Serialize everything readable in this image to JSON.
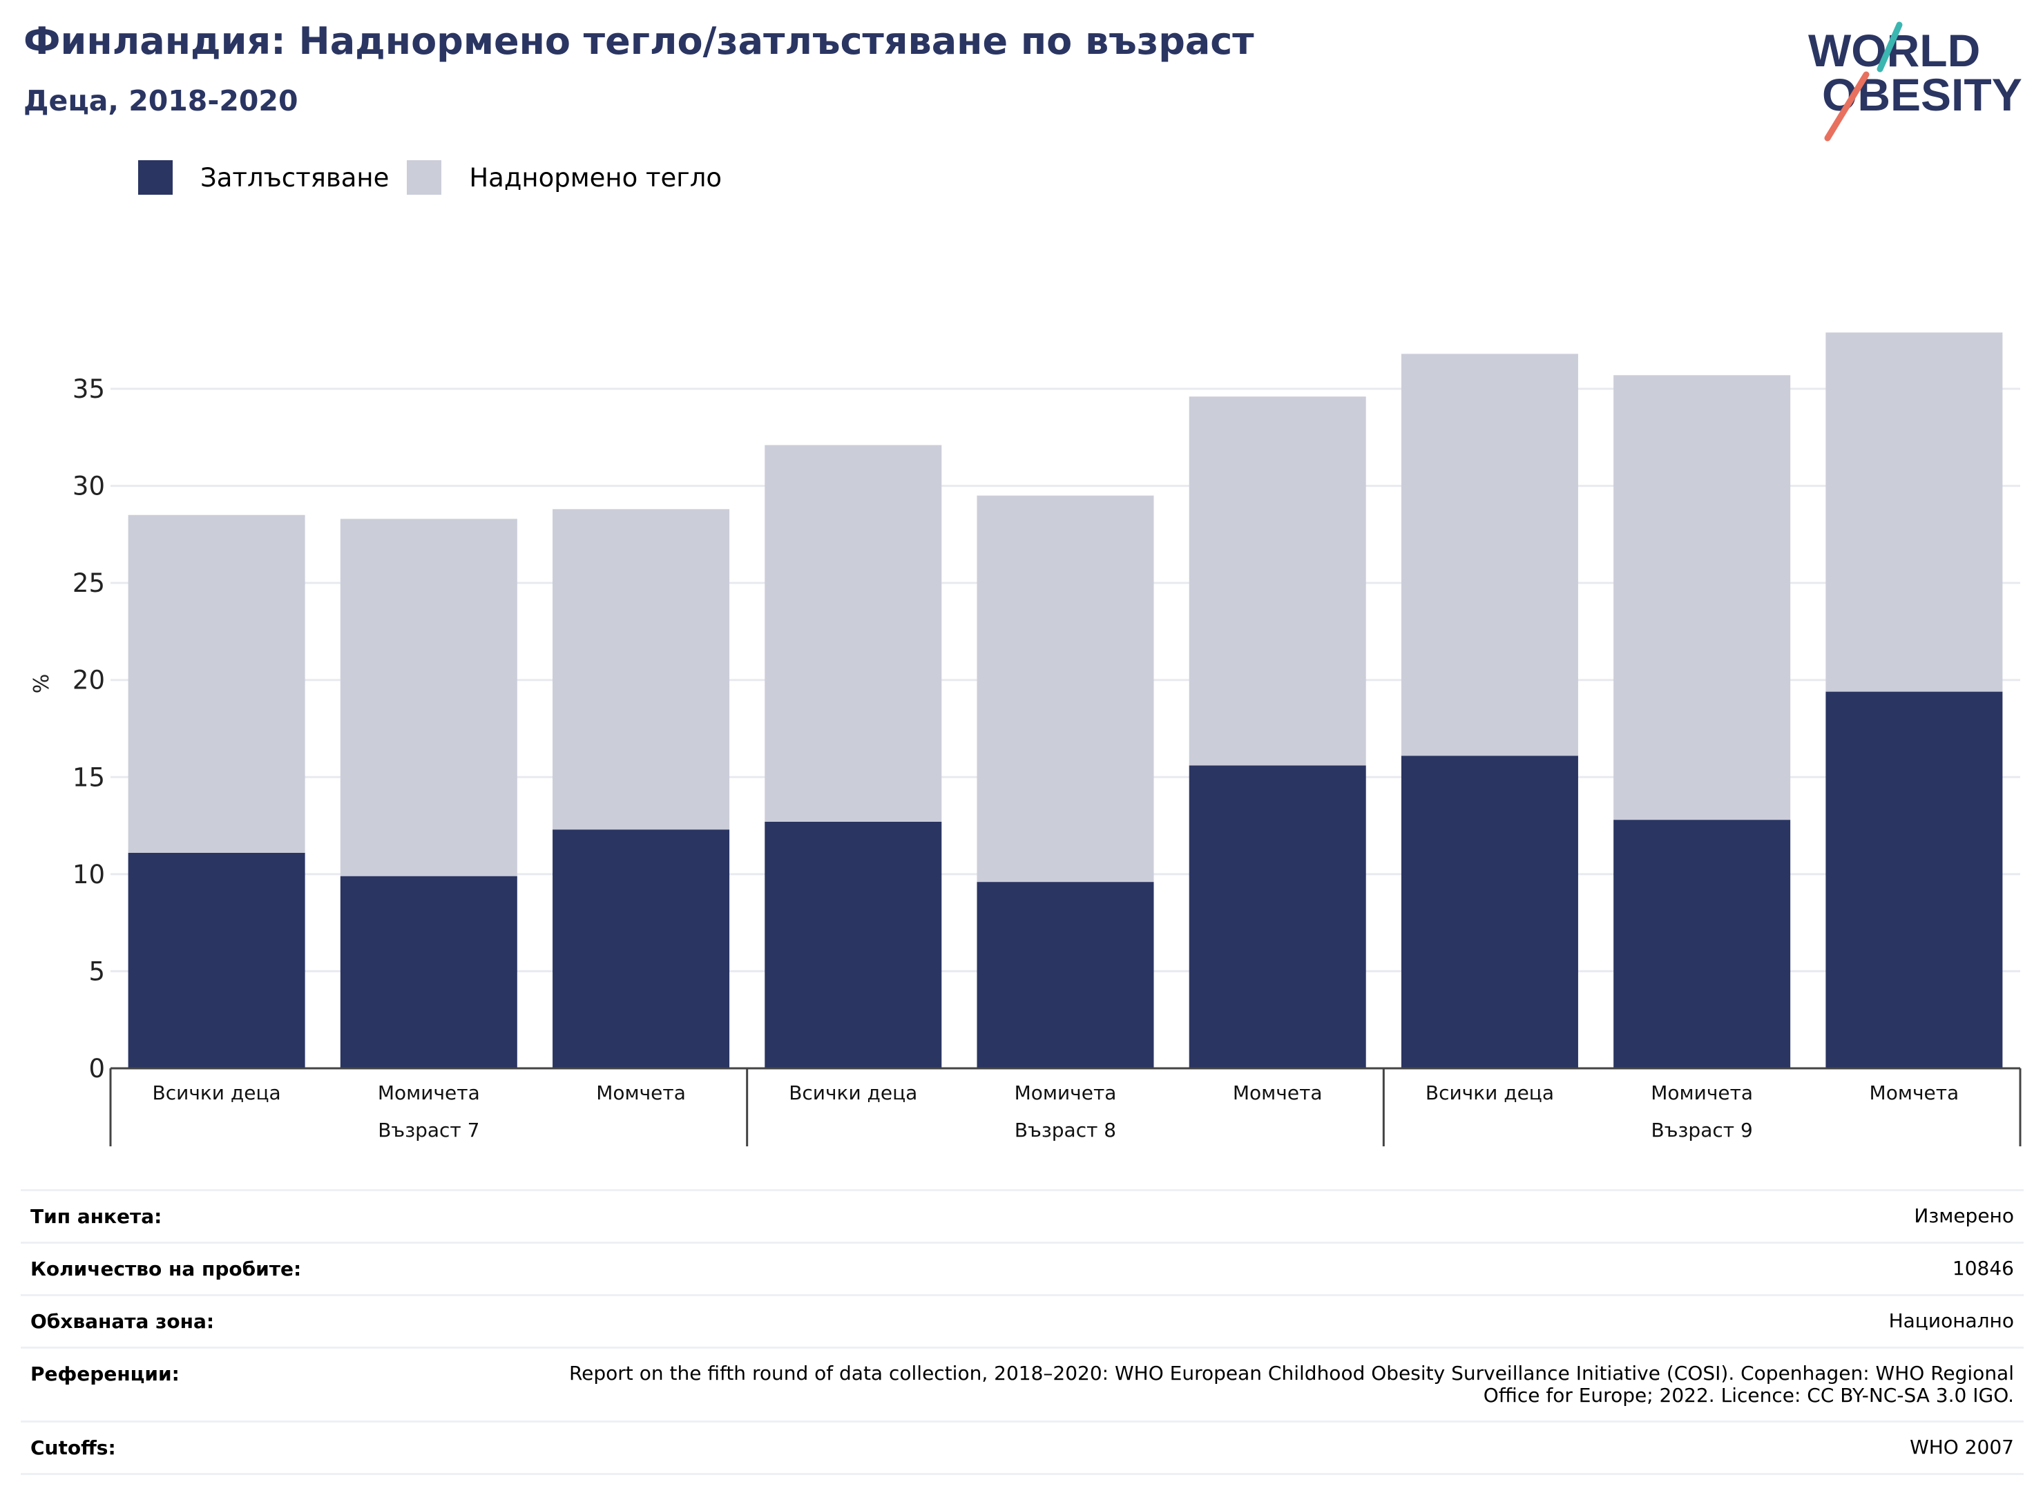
{
  "header": {
    "title": "Финландия: Наднормено тегло/затлъстяване по възраст",
    "subtitle": "Деца, 2018-2020",
    "logo_line1": "WORLD",
    "logo_line2": "OBESITY"
  },
  "colors": {
    "obesity": "#2a3562",
    "overweight": "#cbcdd9",
    "title": "#2a3562",
    "logo_teal": "#3bb6b0",
    "logo_coral": "#e8705e"
  },
  "chart_data": {
    "type": "bar",
    "stacked": true,
    "ylabel": "%",
    "ylim": [
      0,
      40
    ],
    "yticks": [
      0,
      5,
      10,
      15,
      20,
      25,
      30,
      35
    ],
    "grid": true,
    "legend_position": "top-left",
    "categories": [
      "Всички деца",
      "Момичета",
      "Момчета",
      "Всички деца",
      "Момичета",
      "Момчета",
      "Всички деца",
      "Момичета",
      "Момчета"
    ],
    "groups": [
      {
        "label": "Възраст 7",
        "span": 3
      },
      {
        "label": "Възраст 8",
        "span": 3
      },
      {
        "label": "Възраст 9",
        "span": 3
      }
    ],
    "series": [
      {
        "name": "Затлъстяване",
        "values": [
          11.1,
          9.9,
          12.3,
          12.7,
          9.6,
          15.6,
          16.1,
          12.8,
          19.4
        ]
      },
      {
        "name": "Наднормено тегло",
        "values": [
          17.4,
          18.4,
          16.5,
          19.4,
          19.9,
          19.0,
          20.7,
          22.9,
          18.5
        ]
      }
    ]
  },
  "meta": [
    {
      "label": "Тип анкета:",
      "value": "Измерено"
    },
    {
      "label": "Количество на пробите:",
      "value": "10846"
    },
    {
      "label": "Обхваната зона:",
      "value": "Национално"
    },
    {
      "label": "Референции:",
      "value": "Report on the fifth round of data collection, 2018–2020: WHO European Childhood Obesity Surveillance Initiative (COSI). Copenhagen: WHO Regional Office for Europe; 2022. Licence: CC BY-NC-SA 3.0 IGO."
    },
    {
      "label": "Cutoffs:",
      "value": "WHO 2007"
    }
  ]
}
